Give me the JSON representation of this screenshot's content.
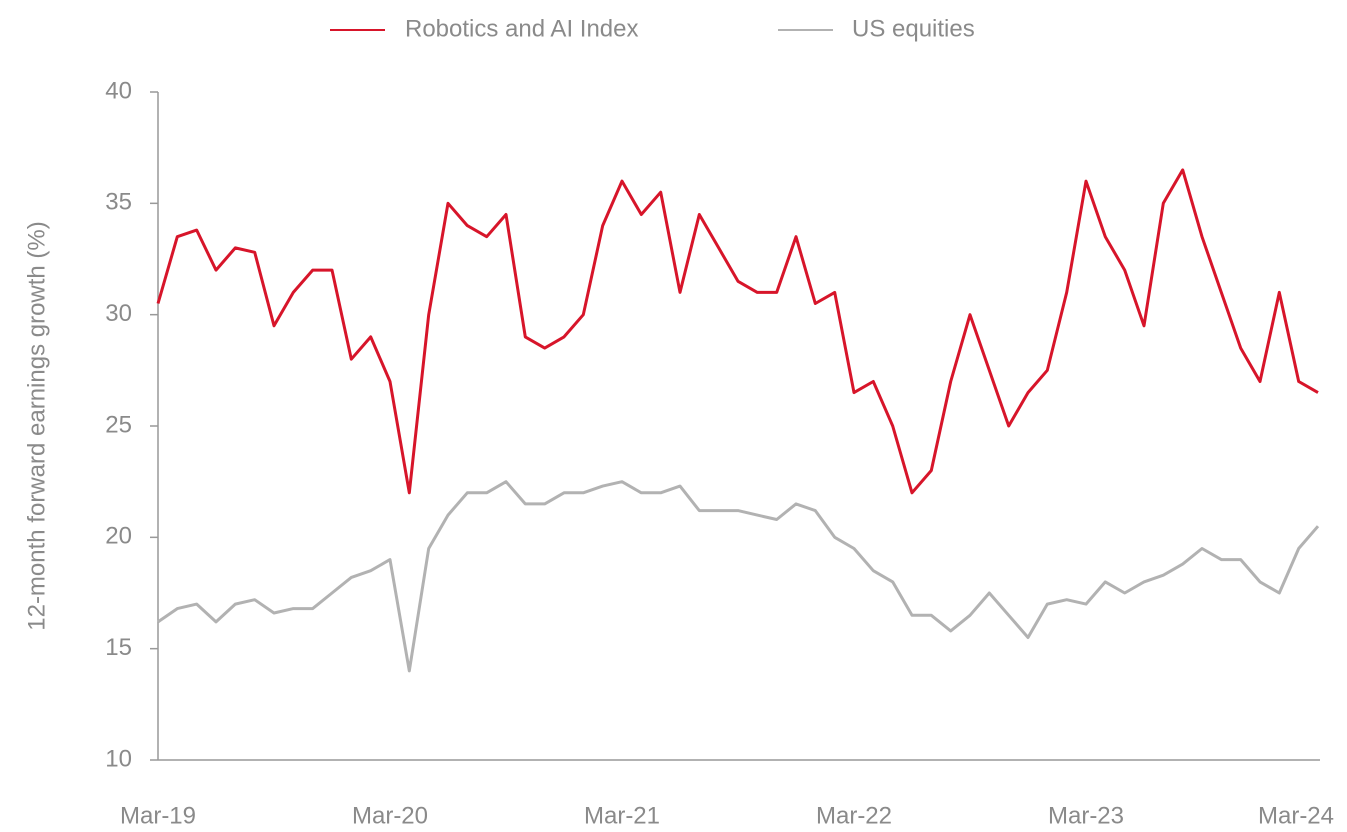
{
  "chart_data": {
    "type": "line",
    "y_label": "12-month forward earnings growth (%)",
    "categories": [
      "Mar-19",
      null,
      null,
      null,
      null,
      null,
      null,
      null,
      null,
      null,
      null,
      null,
      "Mar-20",
      null,
      null,
      null,
      null,
      null,
      null,
      null,
      null,
      null,
      null,
      null,
      "Mar-21",
      null,
      null,
      null,
      null,
      null,
      null,
      null,
      null,
      null,
      null,
      null,
      "Mar-22",
      null,
      null,
      null,
      null,
      null,
      null,
      null,
      null,
      null,
      null,
      null,
      "Mar-23",
      null,
      null,
      null,
      null,
      null,
      null,
      null,
      null,
      null,
      null,
      null,
      "Mar-24"
    ],
    "series": [
      {
        "name": "Robotics and AI Index",
        "color": "#d7152a",
        "values": [
          30.5,
          33.5,
          33.8,
          32,
          33,
          32.8,
          29.5,
          31,
          32,
          32,
          28,
          29,
          27,
          22,
          30,
          35,
          34,
          33.5,
          34.5,
          29,
          28.5,
          29,
          30,
          34,
          36,
          34.5,
          35.5,
          31,
          34.5,
          33,
          31.5,
          31,
          31,
          33.5,
          30.5,
          31,
          26.5,
          27,
          25,
          22,
          23,
          27,
          30,
          27.5,
          25,
          26.5,
          27.5,
          31,
          36,
          33.5,
          32,
          29.5,
          35,
          36.5,
          33.5,
          31,
          28.5,
          27,
          31,
          27,
          26.5
        ]
      },
      {
        "name": "US equities",
        "color": "#b2b2b2",
        "values": [
          16.2,
          16.8,
          17,
          16.2,
          17,
          17.2,
          16.6,
          16.8,
          16.8,
          17.5,
          18.2,
          18.5,
          19,
          14,
          19.5,
          21,
          22,
          22,
          22.5,
          21.5,
          21.5,
          22,
          22,
          22.3,
          22.5,
          22,
          22,
          22.3,
          21.2,
          21.2,
          21.2,
          21,
          20.8,
          21.5,
          21.2,
          20,
          19.5,
          18.5,
          18,
          16.5,
          16.5,
          15.8,
          16.5,
          17.5,
          16.5,
          15.5,
          17,
          17.2,
          17,
          18,
          17.5,
          18,
          18.3,
          18.8,
          19.5,
          19,
          19,
          18,
          17.5,
          19.5,
          20.5
        ]
      }
    ],
    "ylim": [
      10,
      40
    ],
    "yticks": [
      10,
      15,
      20,
      25,
      30,
      35,
      40
    ],
    "legend": "top"
  }
}
